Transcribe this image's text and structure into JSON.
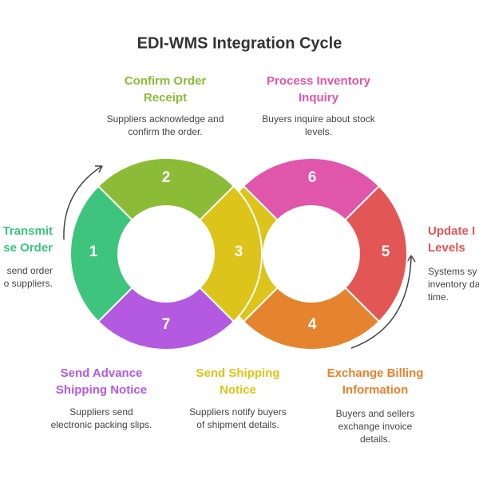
{
  "header": {
    "title": "EDI-WMS Integration Cycle"
  },
  "nodes": [
    {
      "number": 1,
      "color": "#3ec47c",
      "title": [
        "Transmit",
        "se Order"
      ],
      "description": [
        "send order",
        "o suppliers."
      ]
    },
    {
      "number": 2,
      "color": "#8cbb37",
      "title": [
        "Confirm Order",
        "Receipt"
      ],
      "description": [
        "Suppliers acknowledge and",
        "confirm the order."
      ]
    },
    {
      "number": 3,
      "color": "#dcc41a",
      "title": [
        "Send Shipping",
        "Notice"
      ],
      "description": [
        "Suppliers notify buyers",
        "of shipment details."
      ]
    },
    {
      "number": 4,
      "color": "#e5832f",
      "title": [
        "Exchange Billing",
        "Information"
      ],
      "description": [
        "Buyers and sellers",
        "exchange invoice",
        "details."
      ]
    },
    {
      "number": 5,
      "color": "#e35656",
      "title": [
        "Update I",
        "Levels"
      ],
      "description": [
        "Systems sy",
        "inventory da",
        "time."
      ]
    },
    {
      "number": 6,
      "color": "#e056ab",
      "title": [
        "Process Inventory",
        "Inquiry"
      ],
      "description": [
        "Buyers inquire about stock",
        "levels."
      ]
    },
    {
      "number": 7,
      "color": "#b35ae0",
      "title": [
        "Send Advance",
        "Shipping Notice"
      ],
      "description": [
        "Suppliers send",
        "electronic packing slips."
      ]
    }
  ]
}
